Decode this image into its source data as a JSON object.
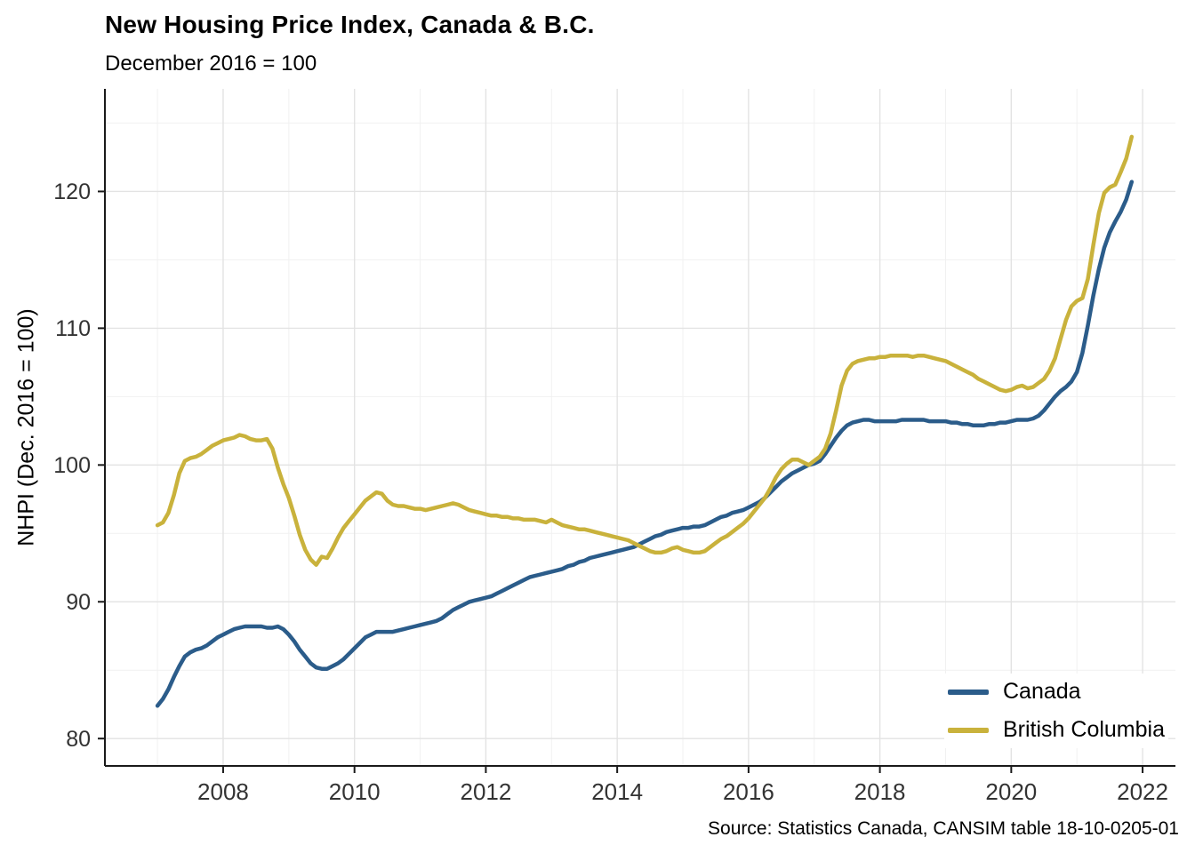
{
  "page": {
    "title": "New Housing Price Index, Canada & B.C.",
    "subtitle": "December 2016 = 100",
    "y_axis_title": "NHPI (Dec. 2016 = 100)",
    "caption": "Source: Statistics Canada, CANSIM table 18-10-0205-01"
  },
  "chart_data": {
    "type": "line",
    "title": "New Housing Price Index, Canada & B.C.",
    "subtitle": "December 2016 = 100",
    "xlabel": "",
    "ylabel": "NHPI (Dec. 2016 = 100)",
    "source": "Source: Statistics Canada, CANSIM table 18-10-0205-01",
    "frequency": "monthly",
    "x_start_year": 2007,
    "x_start_month": 1,
    "x_ticks": [
      2008,
      2010,
      2012,
      2014,
      2016,
      2018,
      2020,
      2022
    ],
    "x_minor_ticks": [
      2007,
      2009,
      2011,
      2013,
      2015,
      2017,
      2019,
      2021
    ],
    "y_ticks": [
      80,
      90,
      100,
      110,
      120
    ],
    "y_minor_ticks": [
      85,
      95,
      105,
      115,
      125
    ],
    "xlim": [
      2006.2,
      2022.5
    ],
    "ylim": [
      78,
      127.5
    ],
    "grid": true,
    "legend_position": "bottom-right-inside",
    "series": [
      {
        "name": "Canada",
        "color": "#2B5C8A",
        "values": [
          82.4,
          82.9,
          83.6,
          84.5,
          85.3,
          86.0,
          86.3,
          86.5,
          86.6,
          86.8,
          87.1,
          87.4,
          87.6,
          87.8,
          88.0,
          88.1,
          88.2,
          88.2,
          88.2,
          88.2,
          88.1,
          88.1,
          88.2,
          88.0,
          87.6,
          87.1,
          86.5,
          86.0,
          85.5,
          85.2,
          85.1,
          85.1,
          85.3,
          85.5,
          85.8,
          86.2,
          86.6,
          87.0,
          87.4,
          87.6,
          87.8,
          87.8,
          87.8,
          87.8,
          87.9,
          88.0,
          88.1,
          88.2,
          88.3,
          88.4,
          88.5,
          88.6,
          88.8,
          89.1,
          89.4,
          89.6,
          89.8,
          90.0,
          90.1,
          90.2,
          90.3,
          90.4,
          90.6,
          90.8,
          91.0,
          91.2,
          91.4,
          91.6,
          91.8,
          91.9,
          92.0,
          92.1,
          92.2,
          92.3,
          92.4,
          92.6,
          92.7,
          92.9,
          93.0,
          93.2,
          93.3,
          93.4,
          93.5,
          93.6,
          93.7,
          93.8,
          93.9,
          94.0,
          94.2,
          94.4,
          94.6,
          94.8,
          94.9,
          95.1,
          95.2,
          95.3,
          95.4,
          95.4,
          95.5,
          95.5,
          95.6,
          95.8,
          96.0,
          96.2,
          96.3,
          96.5,
          96.6,
          96.7,
          96.9,
          97.1,
          97.3,
          97.6,
          98.0,
          98.4,
          98.8,
          99.1,
          99.4,
          99.6,
          99.8,
          100.0,
          100.1,
          100.3,
          100.8,
          101.4,
          102.0,
          102.5,
          102.9,
          103.1,
          103.2,
          103.3,
          103.3,
          103.2,
          103.2,
          103.2,
          103.2,
          103.2,
          103.3,
          103.3,
          103.3,
          103.3,
          103.3,
          103.2,
          103.2,
          103.2,
          103.2,
          103.1,
          103.1,
          103.0,
          103.0,
          102.9,
          102.9,
          102.9,
          103.0,
          103.0,
          103.1,
          103.1,
          103.2,
          103.3,
          103.3,
          103.3,
          103.4,
          103.6,
          104.0,
          104.5,
          105.0,
          105.4,
          105.7,
          106.1,
          106.8,
          108.2,
          110.2,
          112.4,
          114.3,
          115.9,
          117.0,
          117.8,
          118.5,
          119.4,
          120.7
        ]
      },
      {
        "name": "British Columbia",
        "color": "#C9B23C",
        "values": [
          95.6,
          95.8,
          96.5,
          97.8,
          99.4,
          100.3,
          100.5,
          100.6,
          100.8,
          101.1,
          101.4,
          101.6,
          101.8,
          101.9,
          102.0,
          102.2,
          102.1,
          101.9,
          101.8,
          101.8,
          101.9,
          101.2,
          99.8,
          98.6,
          97.6,
          96.3,
          94.9,
          93.8,
          93.1,
          92.7,
          93.3,
          93.2,
          93.9,
          94.7,
          95.4,
          95.9,
          96.4,
          96.9,
          97.4,
          97.7,
          98.0,
          97.9,
          97.4,
          97.1,
          97.0,
          97.0,
          96.9,
          96.8,
          96.8,
          96.7,
          96.8,
          96.9,
          97.0,
          97.1,
          97.2,
          97.1,
          96.9,
          96.7,
          96.6,
          96.5,
          96.4,
          96.3,
          96.3,
          96.2,
          96.2,
          96.1,
          96.1,
          96.0,
          96.0,
          96.0,
          95.9,
          95.8,
          96.0,
          95.8,
          95.6,
          95.5,
          95.4,
          95.3,
          95.3,
          95.2,
          95.1,
          95.0,
          94.9,
          94.8,
          94.7,
          94.6,
          94.5,
          94.3,
          94.1,
          93.9,
          93.7,
          93.6,
          93.6,
          93.7,
          93.9,
          94.0,
          93.8,
          93.7,
          93.6,
          93.6,
          93.7,
          94.0,
          94.3,
          94.6,
          94.8,
          95.1,
          95.4,
          95.7,
          96.1,
          96.6,
          97.1,
          97.6,
          98.3,
          99.1,
          99.7,
          100.1,
          100.4,
          100.4,
          100.2,
          100.0,
          100.3,
          100.6,
          101.2,
          102.3,
          104.0,
          105.8,
          106.9,
          107.4,
          107.6,
          107.7,
          107.8,
          107.8,
          107.9,
          107.9,
          108.0,
          108.0,
          108.0,
          108.0,
          107.9,
          108.0,
          108.0,
          107.9,
          107.8,
          107.7,
          107.6,
          107.4,
          107.2,
          107.0,
          106.8,
          106.6,
          106.3,
          106.1,
          105.9,
          105.7,
          105.5,
          105.4,
          105.5,
          105.7,
          105.8,
          105.6,
          105.7,
          106.0,
          106.3,
          106.9,
          107.8,
          109.2,
          110.6,
          111.6,
          112.0,
          112.2,
          113.6,
          116.1,
          118.4,
          119.9,
          120.3,
          120.5,
          121.4,
          122.4,
          124.0
        ]
      }
    ],
    "style": {
      "axis_line_color": "#1a1a1a",
      "tick_label_color": "#333333",
      "major_grid_color": "#e3e3e3",
      "minor_grid_color": "#f1f1f1",
      "line_width": 4.5
    }
  }
}
